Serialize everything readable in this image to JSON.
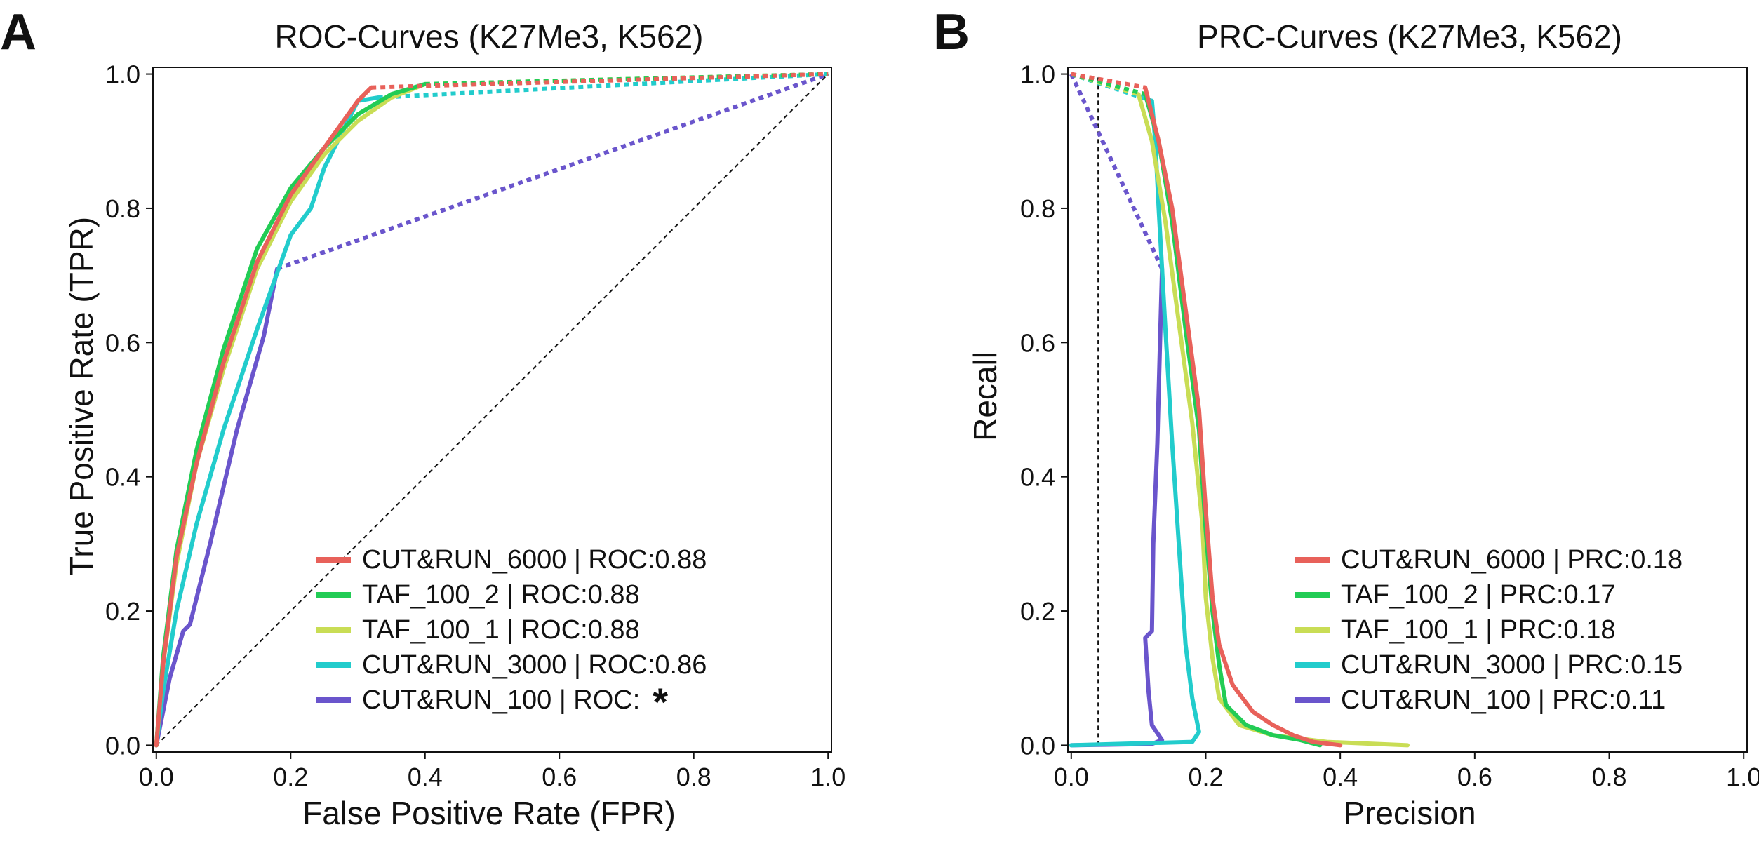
{
  "colors": {
    "CUT&RUN_6000": "#e8615a",
    "TAF_100_2": "#22cc55",
    "TAF_100_1": "#c9dd55",
    "CUT&RUN_3000": "#22cccc",
    "CUT&RUN_100": "#6a55cc"
  },
  "chart_data": [
    {
      "panel": "A",
      "type": "line",
      "title": "ROC-Curves (K27Me3, K562)",
      "xlabel": "False Positive Rate (FPR)",
      "ylabel": "True Positive Rate (TPR)",
      "xlim": [
        0,
        1
      ],
      "ylim": [
        0,
        1
      ],
      "xticks": [
        "0.0",
        "0.2",
        "0.4",
        "0.6",
        "0.8",
        "1.0"
      ],
      "yticks": [
        "0.0",
        "0.2",
        "0.4",
        "0.6",
        "0.8",
        "1.0"
      ],
      "grid": false,
      "legend_position": "bottom-right",
      "reference_line": {
        "style": "dashed",
        "points": [
          [
            0,
            0
          ],
          [
            1,
            1
          ]
        ]
      },
      "series": [
        {
          "name": "CUT&RUN_6000",
          "legend": "CUT&RUN_6000 | ROC:0.88",
          "points": [
            [
              0,
              0
            ],
            [
              0.01,
              0.12
            ],
            [
              0.03,
              0.28
            ],
            [
              0.06,
              0.42
            ],
            [
              0.1,
              0.57
            ],
            [
              0.15,
              0.72
            ],
            [
              0.2,
              0.82
            ],
            [
              0.25,
              0.89
            ],
            [
              0.3,
              0.96
            ],
            [
              0.32,
              0.98
            ]
          ],
          "tail": [
            [
              0.32,
              0.98
            ],
            [
              1,
              1
            ]
          ]
        },
        {
          "name": "TAF_100_2",
          "legend": "TAF_100_2 | ROC:0.88",
          "points": [
            [
              0,
              0
            ],
            [
              0.01,
              0.13
            ],
            [
              0.03,
              0.29
            ],
            [
              0.06,
              0.44
            ],
            [
              0.1,
              0.59
            ],
            [
              0.15,
              0.74
            ],
            [
              0.2,
              0.83
            ],
            [
              0.25,
              0.89
            ],
            [
              0.3,
              0.94
            ],
            [
              0.35,
              0.97
            ],
            [
              0.4,
              0.985
            ]
          ],
          "tail": [
            [
              0.4,
              0.985
            ],
            [
              1,
              1
            ]
          ]
        },
        {
          "name": "TAF_100_1",
          "legend": "TAF_100_1 | ROC:0.88",
          "points": [
            [
              0,
              0
            ],
            [
              0.01,
              0.12
            ],
            [
              0.03,
              0.27
            ],
            [
              0.06,
              0.42
            ],
            [
              0.1,
              0.56
            ],
            [
              0.15,
              0.71
            ],
            [
              0.2,
              0.81
            ],
            [
              0.25,
              0.88
            ],
            [
              0.3,
              0.93
            ],
            [
              0.35,
              0.965
            ],
            [
              0.4,
              0.985
            ]
          ],
          "tail": [
            [
              0.4,
              0.985
            ],
            [
              1,
              1
            ]
          ]
        },
        {
          "name": "CUT&RUN_3000",
          "legend": "CUT&RUN_3000 | ROC:0.86",
          "points": [
            [
              0,
              0
            ],
            [
              0.01,
              0.08
            ],
            [
              0.03,
              0.2
            ],
            [
              0.06,
              0.33
            ],
            [
              0.1,
              0.47
            ],
            [
              0.15,
              0.62
            ],
            [
              0.2,
              0.76
            ],
            [
              0.23,
              0.8
            ],
            [
              0.25,
              0.86
            ],
            [
              0.28,
              0.92
            ],
            [
              0.3,
              0.96
            ],
            [
              0.33,
              0.965
            ]
          ],
          "tail": [
            [
              0.33,
              0.965
            ],
            [
              1,
              1
            ]
          ]
        },
        {
          "name": "CUT&RUN_100",
          "legend": "CUT&RUN_100 | ROC:",
          "points": [
            [
              0,
              0
            ],
            [
              0.02,
              0.1
            ],
            [
              0.04,
              0.17
            ],
            [
              0.05,
              0.18
            ],
            [
              0.08,
              0.3
            ],
            [
              0.12,
              0.47
            ],
            [
              0.16,
              0.61
            ],
            [
              0.18,
              0.71
            ]
          ],
          "tail": [
            [
              0.18,
              0.71
            ],
            [
              1,
              1
            ]
          ]
        }
      ],
      "legend_marker": "*"
    },
    {
      "panel": "B",
      "type": "line",
      "title": "PRC-Curves (K27Me3, K562)",
      "xlabel": "Precision",
      "ylabel": "Recall",
      "xlim": [
        0,
        1
      ],
      "ylim": [
        0,
        1
      ],
      "xticks": [
        "0.0",
        "0.2",
        "0.4",
        "0.6",
        "0.8",
        "1.0"
      ],
      "yticks": [
        "0.0",
        "0.2",
        "0.4",
        "0.6",
        "0.8",
        "1.0"
      ],
      "grid": false,
      "legend_position": "bottom-right",
      "reference_line": {
        "style": "dashed",
        "points": [
          [
            0.04,
            0
          ],
          [
            0.04,
            1
          ]
        ]
      },
      "series": [
        {
          "name": "CUT&RUN_6000",
          "legend": "CUT&RUN_6000 | PRC:0.18",
          "head": [
            [
              0,
              1
            ],
            [
              0.11,
              0.98
            ]
          ],
          "points": [
            [
              0.11,
              0.98
            ],
            [
              0.13,
              0.9
            ],
            [
              0.15,
              0.8
            ],
            [
              0.17,
              0.65
            ],
            [
              0.19,
              0.5
            ],
            [
              0.2,
              0.35
            ],
            [
              0.21,
              0.22
            ],
            [
              0.22,
              0.15
            ],
            [
              0.24,
              0.09
            ],
            [
              0.27,
              0.05
            ],
            [
              0.3,
              0.03
            ],
            [
              0.33,
              0.015
            ],
            [
              0.36,
              0.005
            ],
            [
              0.4,
              0.0
            ]
          ]
        },
        {
          "name": "TAF_100_2",
          "legend": "TAF_100_2 | PRC:0.17",
          "head": [
            [
              0,
              1
            ],
            [
              0.11,
              0.97
            ]
          ],
          "points": [
            [
              0.11,
              0.97
            ],
            [
              0.13,
              0.9
            ],
            [
              0.15,
              0.78
            ],
            [
              0.17,
              0.62
            ],
            [
              0.19,
              0.47
            ],
            [
              0.2,
              0.32
            ],
            [
              0.21,
              0.2
            ],
            [
              0.22,
              0.12
            ],
            [
              0.23,
              0.06
            ],
            [
              0.26,
              0.03
            ],
            [
              0.3,
              0.015
            ],
            [
              0.34,
              0.008
            ],
            [
              0.37,
              0.0
            ]
          ]
        },
        {
          "name": "TAF_100_1",
          "legend": "TAF_100_1 | PRC:0.18",
          "head": [
            [
              0,
              1
            ],
            [
              0.1,
              0.97
            ]
          ],
          "points": [
            [
              0.1,
              0.97
            ],
            [
              0.12,
              0.9
            ],
            [
              0.14,
              0.78
            ],
            [
              0.16,
              0.63
            ],
            [
              0.18,
              0.48
            ],
            [
              0.195,
              0.33
            ],
            [
              0.2,
              0.22
            ],
            [
              0.21,
              0.13
            ],
            [
              0.22,
              0.07
            ],
            [
              0.25,
              0.03
            ],
            [
              0.3,
              0.015
            ],
            [
              0.38,
              0.005
            ],
            [
              0.5,
              0.0
            ]
          ]
        },
        {
          "name": "CUT&RUN_3000",
          "legend": "CUT&RUN_3000 | PRC:0.15",
          "head": [
            [
              0,
              1
            ],
            [
              0.12,
              0.96
            ]
          ],
          "points": [
            [
              0.12,
              0.96
            ],
            [
              0.125,
              0.9
            ],
            [
              0.13,
              0.8
            ],
            [
              0.14,
              0.62
            ],
            [
              0.15,
              0.45
            ],
            [
              0.16,
              0.3
            ],
            [
              0.17,
              0.15
            ],
            [
              0.18,
              0.07
            ],
            [
              0.19,
              0.02
            ],
            [
              0.18,
              0.005
            ],
            [
              0.0,
              0.0
            ]
          ]
        },
        {
          "name": "CUT&RUN_100",
          "legend": "CUT&RUN_100 | PRC:0.11",
          "head": [
            [
              0,
              1
            ],
            [
              0.135,
              0.71
            ]
          ],
          "points": [
            [
              0.135,
              0.71
            ],
            [
              0.132,
              0.6
            ],
            [
              0.128,
              0.45
            ],
            [
              0.122,
              0.3
            ],
            [
              0.12,
              0.17
            ],
            [
              0.11,
              0.16
            ],
            [
              0.115,
              0.08
            ],
            [
              0.12,
              0.03
            ],
            [
              0.135,
              0.008
            ],
            [
              0.12,
              0.002
            ],
            [
              0.0,
              0.0
            ]
          ]
        }
      ]
    }
  ]
}
